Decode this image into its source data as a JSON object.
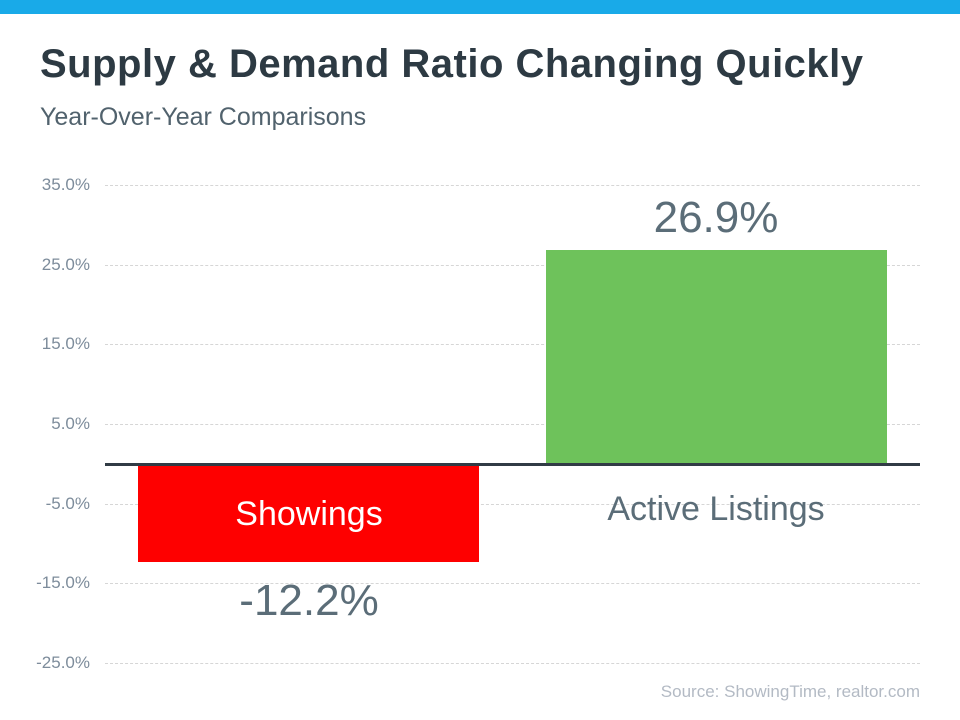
{
  "header": {
    "title": "Supply & Demand Ratio Changing Quickly",
    "subtitle": "Year-Over-Year Comparisons"
  },
  "footer": {
    "source": "Source: ShowingTime, realtor.com"
  },
  "colors": {
    "accent_bar": "#19aae8",
    "title_text": "#2d3a43",
    "subtitle_text": "#51626d",
    "slate_text": "#5b6d78",
    "tick_label": "#7d8c9b",
    "gridline": "#d6d6d6",
    "zero_line": "#313b45",
    "bar_negative": "#fe0000",
    "bar_positive": "#6ec25b",
    "source_text": "#b3bac4",
    "inside_bar_label": "#ffffff"
  },
  "chart_data": {
    "type": "bar",
    "title": "Supply & Demand Ratio Changing Quickly",
    "subtitle": "Year-Over-Year Comparisons",
    "categories": [
      "Showings",
      "Active Listings"
    ],
    "values": [
      -12.2,
      26.9
    ],
    "value_labels": [
      "-12.2%",
      "26.9%"
    ],
    "ylabel": "",
    "xlabel": "",
    "ylim": [
      -25,
      35
    ],
    "grid": true,
    "legend": false,
    "yticks": [
      {
        "value": 35,
        "label": "35.0%"
      },
      {
        "value": 25,
        "label": "25.0%"
      },
      {
        "value": 15,
        "label": "15.0%"
      },
      {
        "value": 5,
        "label": "5.0%"
      },
      {
        "value": -5,
        "label": "-5.0%"
      },
      {
        "value": -15,
        "label": "-15.0%"
      },
      {
        "value": -25,
        "label": "-25.0%"
      }
    ],
    "bars": [
      {
        "category": "Showings",
        "value": -12.2,
        "display_value": "-12.2%",
        "color": "#fe0000",
        "category_label_style": "inside-bar",
        "category_label_color": "#ffffff"
      },
      {
        "category": "Active Listings",
        "value": 26.9,
        "display_value": "26.9%",
        "color": "#6ec25b",
        "category_label_style": "below-axis",
        "category_label_color": "#5b6d78"
      }
    ]
  }
}
